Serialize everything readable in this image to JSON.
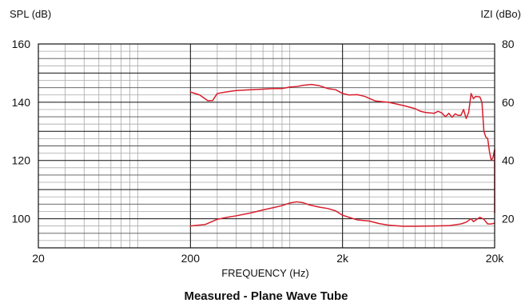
{
  "chart_data": {
    "type": "line",
    "title": "Measured - Plane Wave Tube",
    "xlabel": "FREQUENCY (Hz)",
    "ylabel_left": "SPL (dB)",
    "ylabel_right": "IZI (dBo)",
    "x_scale": "log",
    "xlim": [
      20,
      20000
    ],
    "ylim_left": [
      90,
      160
    ],
    "ylim_right": [
      10,
      80
    ],
    "x_ticks": [
      {
        "value": 20,
        "label": "20"
      },
      {
        "value": 200,
        "label": "200"
      },
      {
        "value": 2000,
        "label": "2k"
      },
      {
        "value": 20000,
        "label": "20k"
      }
    ],
    "y_ticks_left": [
      {
        "value": 160,
        "label": "160"
      },
      {
        "value": 140,
        "label": "140"
      },
      {
        "value": 120,
        "label": "120"
      },
      {
        "value": 100,
        "label": "100"
      }
    ],
    "y_ticks_right": [
      {
        "value": 80,
        "label": "80"
      },
      {
        "value": 60,
        "label": "60"
      },
      {
        "value": 40,
        "label": "40"
      },
      {
        "value": 20,
        "label": "20"
      }
    ],
    "grid": true,
    "line_color": "#d81e2c",
    "series": [
      {
        "axis": "left",
        "points": [
          [
            200,
            143.5
          ],
          [
            230,
            142.5
          ],
          [
            260,
            140.5
          ],
          [
            280,
            140.6
          ],
          [
            300,
            143.0
          ],
          [
            350,
            143.6
          ],
          [
            400,
            144.0
          ],
          [
            500,
            144.3
          ],
          [
            600,
            144.5
          ],
          [
            700,
            144.7
          ],
          [
            800,
            144.7
          ],
          [
            900,
            145.2
          ],
          [
            1000,
            145.4
          ],
          [
            1100,
            145.8
          ],
          [
            1250,
            146.1
          ],
          [
            1400,
            145.7
          ],
          [
            1600,
            144.7
          ],
          [
            1800,
            144.3
          ],
          [
            2000,
            143.0
          ],
          [
            2200,
            142.5
          ],
          [
            2500,
            142.6
          ],
          [
            2800,
            142.0
          ],
          [
            3000,
            141.3
          ],
          [
            3300,
            140.4
          ],
          [
            4000,
            140.0
          ],
          [
            5000,
            138.9
          ],
          [
            6000,
            137.8
          ],
          [
            6500,
            136.9
          ],
          [
            7000,
            136.5
          ],
          [
            8000,
            136.2
          ],
          [
            8500,
            136.9
          ],
          [
            9000,
            136.3
          ],
          [
            9500,
            135.0
          ],
          [
            10000,
            136.2
          ],
          [
            10500,
            134.8
          ],
          [
            11000,
            136.0
          ],
          [
            11500,
            135.5
          ],
          [
            12000,
            135.5
          ],
          [
            12500,
            137.5
          ],
          [
            13000,
            134.4
          ],
          [
            13500,
            136.5
          ],
          [
            14000,
            143.0
          ],
          [
            14500,
            141.2
          ],
          [
            15000,
            142.0
          ],
          [
            16000,
            141.8
          ],
          [
            16500,
            140.0
          ],
          [
            17000,
            130.0
          ],
          [
            17500,
            128.0
          ],
          [
            18000,
            127.5
          ],
          [
            18500,
            123.0
          ],
          [
            19000,
            120.0
          ],
          [
            19500,
            121.0
          ],
          [
            20000,
            123.8
          ],
          [
            20500,
            112.0
          ],
          [
            21000,
            102.0
          ]
        ]
      },
      {
        "axis": "right",
        "points": [
          [
            200,
            17.5
          ],
          [
            250,
            18.0
          ],
          [
            300,
            19.8
          ],
          [
            350,
            20.5
          ],
          [
            400,
            21.0
          ],
          [
            500,
            22.0
          ],
          [
            600,
            23.0
          ],
          [
            700,
            23.8
          ],
          [
            800,
            24.5
          ],
          [
            900,
            25.4
          ],
          [
            1000,
            25.8
          ],
          [
            1100,
            25.5
          ],
          [
            1200,
            24.8
          ],
          [
            1400,
            24.0
          ],
          [
            1600,
            23.5
          ],
          [
            1800,
            22.7
          ],
          [
            2000,
            21.2
          ],
          [
            2200,
            20.5
          ],
          [
            2500,
            19.6
          ],
          [
            3000,
            19.2
          ],
          [
            3500,
            18.3
          ],
          [
            4000,
            17.8
          ],
          [
            5000,
            17.4
          ],
          [
            6000,
            17.4
          ],
          [
            8000,
            17.5
          ],
          [
            10000,
            17.6
          ],
          [
            12000,
            18.2
          ],
          [
            13000,
            18.8
          ],
          [
            14000,
            20.0
          ],
          [
            14500,
            19.0
          ],
          [
            15000,
            19.5
          ],
          [
            16000,
            20.5
          ],
          [
            17000,
            19.8
          ],
          [
            18000,
            18.2
          ],
          [
            19000,
            18.2
          ],
          [
            20000,
            18.5
          ],
          [
            21000,
            18.5
          ]
        ]
      }
    ]
  }
}
